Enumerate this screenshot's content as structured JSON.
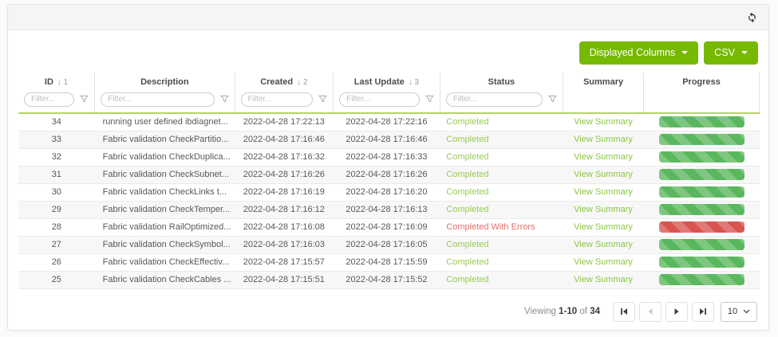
{
  "card": {
    "refresh_icon": "refresh-icon"
  },
  "toolbar": {
    "displayed_columns_label": "Displayed Columns",
    "csv_label": "CSV"
  },
  "table": {
    "filter_placeholder": "Filter...",
    "columns": [
      {
        "label": "ID",
        "sort_indicator": "↓ 1",
        "filter": true
      },
      {
        "label": "Description",
        "filter": true
      },
      {
        "label": "Created",
        "sort_indicator": "↓ 2",
        "filter": true
      },
      {
        "label": "Last Update",
        "sort_indicator": "↓ 3",
        "filter": true
      },
      {
        "label": "Status",
        "filter": true
      },
      {
        "label": "Summary",
        "filter": false
      },
      {
        "label": "Progress",
        "filter": false
      }
    ],
    "rows": [
      {
        "id": "34",
        "description": "running user defined ibdiagnet...",
        "created": "2022-04-28 17:22:13",
        "last_update": "2022-04-28 17:22:16",
        "status": "Completed",
        "status_type": "success",
        "summary": "View Summary",
        "progress": 100,
        "progress_color": "green"
      },
      {
        "id": "33",
        "description": "Fabric validation CheckPartitio...",
        "created": "2022-04-28 17:16:46",
        "last_update": "2022-04-28 17:16:46",
        "status": "Completed",
        "status_type": "success",
        "summary": "View Summary",
        "progress": 100,
        "progress_color": "green"
      },
      {
        "id": "32",
        "description": "Fabric validation CheckDuplica...",
        "created": "2022-04-28 17:16:32",
        "last_update": "2022-04-28 17:16:33",
        "status": "Completed",
        "status_type": "success",
        "summary": "View Summary",
        "progress": 100,
        "progress_color": "green"
      },
      {
        "id": "31",
        "description": "Fabric validation CheckSubnet...",
        "created": "2022-04-28 17:16:26",
        "last_update": "2022-04-28 17:16:26",
        "status": "Completed",
        "status_type": "success",
        "summary": "View Summary",
        "progress": 100,
        "progress_color": "green"
      },
      {
        "id": "30",
        "description": "Fabric validation CheckLinks t...",
        "created": "2022-04-28 17:16:19",
        "last_update": "2022-04-28 17:16:20",
        "status": "Completed",
        "status_type": "success",
        "summary": "View Summary",
        "progress": 100,
        "progress_color": "green"
      },
      {
        "id": "29",
        "description": "Fabric validation CheckTemper...",
        "created": "2022-04-28 17:16:12",
        "last_update": "2022-04-28 17:16:13",
        "status": "Completed",
        "status_type": "success",
        "summary": "View Summary",
        "progress": 100,
        "progress_color": "green"
      },
      {
        "id": "28",
        "description": "Fabric validation RailOptimized...",
        "created": "2022-04-28 17:16:08",
        "last_update": "2022-04-28 17:16:09",
        "status": "Completed With Errors",
        "status_type": "error",
        "summary": "View Summary",
        "progress": 100,
        "progress_color": "red"
      },
      {
        "id": "27",
        "description": "Fabric validation CheckSymbol...",
        "created": "2022-04-28 17:16:03",
        "last_update": "2022-04-28 17:16:05",
        "status": "Completed",
        "status_type": "success",
        "summary": "View Summary",
        "progress": 100,
        "progress_color": "green"
      },
      {
        "id": "26",
        "description": "Fabric validation CheckEffectiv...",
        "created": "2022-04-28 17:15:57",
        "last_update": "2022-04-28 17:15:59",
        "status": "Completed",
        "status_type": "success",
        "summary": "View Summary",
        "progress": 100,
        "progress_color": "green"
      },
      {
        "id": "25",
        "description": "Fabric validation CheckCables ...",
        "created": "2022-04-28 17:15:51",
        "last_update": "2022-04-28 17:15:52",
        "status": "Completed",
        "status_type": "success",
        "summary": "View Summary",
        "progress": 100,
        "progress_color": "green"
      }
    ]
  },
  "pagination": {
    "viewing_label": "Viewing",
    "range": "1-10",
    "of_label": "of",
    "total": "34",
    "page_size": "10"
  },
  "colors": {
    "accent_green": "#76b900",
    "status_success": "#9bca54",
    "status_error": "#e4706b",
    "bar_green": "#5bb75d",
    "bar_red": "#d9534f",
    "filter_divider_green": "#b3d465"
  }
}
